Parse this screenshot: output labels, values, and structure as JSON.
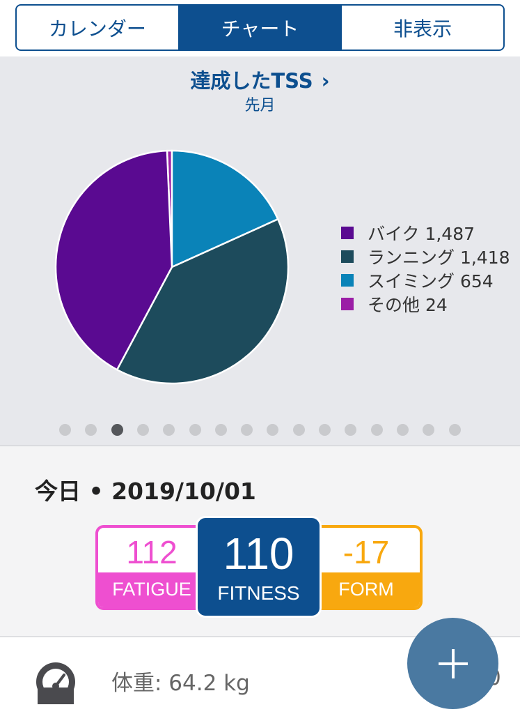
{
  "tabs": [
    {
      "label": "カレンダー",
      "active": false
    },
    {
      "label": "チャート",
      "active": true
    },
    {
      "label": "非表示",
      "active": false
    }
  ],
  "chart_panel": {
    "title": "達成したTSS",
    "title_chevron": "›",
    "subtitle": "先月",
    "page_dots": {
      "count": 16,
      "active_index": 2
    }
  },
  "chart_data": {
    "type": "pie",
    "title": "達成したTSS",
    "subtitle": "先月",
    "slices": [
      {
        "label": "バイク",
        "value": 1487,
        "display": "バイク 1,487",
        "color": "#5a0a91"
      },
      {
        "label": "ランニング",
        "value": 1418,
        "display": "ランニング 1,418",
        "color": "#1d4b5c"
      },
      {
        "label": "スイミング",
        "value": 654,
        "display": "スイミング 654",
        "color": "#0a83b8"
      },
      {
        "label": "その他",
        "value": 24,
        "display": "その他 24",
        "color": "#9b1ea6"
      }
    ],
    "legend_position": "right"
  },
  "today": {
    "date_label": "今日 • 2019/10/01",
    "fatigue": {
      "value": "112",
      "label": "FATIGUE",
      "color": "#ee4fd0"
    },
    "fitness": {
      "value": "110",
      "label": "FITNESS",
      "color": "#0d4f8f"
    },
    "form": {
      "value": "-17",
      "label": "FORM",
      "color": "#f8a80f"
    }
  },
  "bottom": {
    "icon": "gauge-icon",
    "weight_label": "体重: 64.2 kg",
    "trailing_text": "0"
  },
  "fab": {
    "icon": "plus-icon"
  },
  "colors": {
    "accent": "#0d4f8f",
    "panel_bg": "#e7e8ec",
    "fab": "#4a79a1"
  }
}
